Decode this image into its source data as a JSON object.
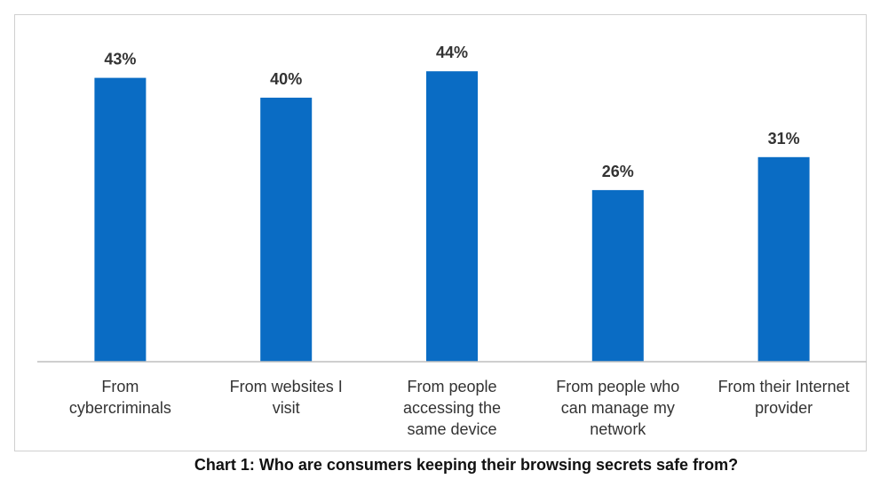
{
  "colors": {
    "bar": "#0a6cc4",
    "axis": "#bfbfbf",
    "text": "#333333"
  },
  "chart_data": {
    "type": "bar",
    "categories": [
      "From cybercriminals",
      "From websites I visit",
      "From people accessing the same device",
      "From people who can manage my network",
      "From their Internet provider"
    ],
    "category_label_lines": [
      [
        "From",
        "cybercriminals"
      ],
      [
        "From websites I",
        "visit"
      ],
      [
        "From people",
        "accessing the",
        "same device"
      ],
      [
        "From people who",
        "can manage my",
        "network"
      ],
      [
        "From their Internet",
        "provider"
      ]
    ],
    "values": [
      43,
      40,
      44,
      26,
      31
    ],
    "data_labels": [
      "43%",
      "40%",
      "44%",
      "26%",
      "31%"
    ],
    "ylim": [
      0,
      50
    ],
    "grid": false,
    "legend": "none",
    "caption": "Chart 1: Who are consumers keeping their browsing secrets safe from?"
  }
}
